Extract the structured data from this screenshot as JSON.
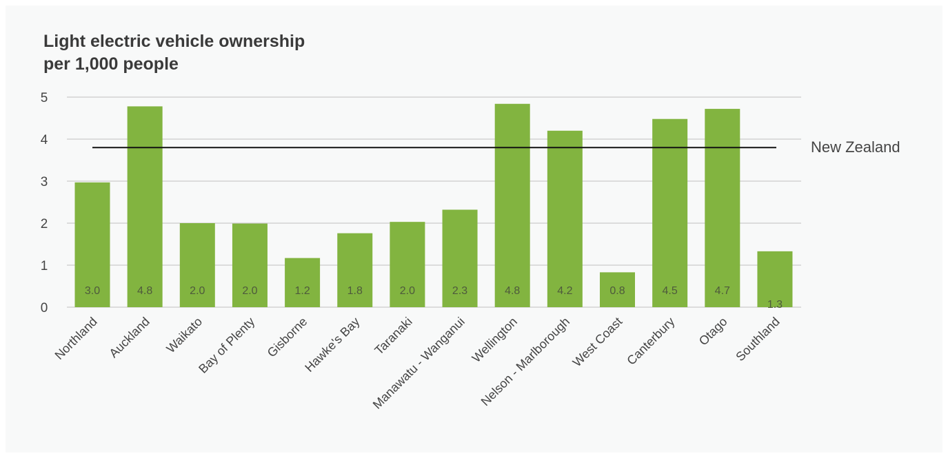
{
  "chart_data": {
    "type": "bar",
    "title_lines": [
      "Light electric vehicle ownership",
      "per 1,000 people"
    ],
    "xlabel": "",
    "ylabel": "",
    "ylim": [
      0,
      5
    ],
    "yticks": [
      "0",
      "1",
      "2",
      "3",
      "4",
      "5"
    ],
    "grid": true,
    "categories": [
      "Northland",
      "Auckland",
      "Waikato",
      "Bay of Plenty",
      "Gisborne",
      "Hawke's Bay",
      "Taranaki",
      "Manawatu - Wanganui",
      "Wellington",
      "Nelson - Marlborough",
      "West Coast",
      "Canterbury",
      "Otago",
      "Southland"
    ],
    "values": [
      2.97,
      4.78,
      2.0,
      1.99,
      1.17,
      1.76,
      2.03,
      2.32,
      4.84,
      4.2,
      0.83,
      4.48,
      4.72,
      1.33
    ],
    "value_labels": [
      "3.0",
      "4.8",
      "2.0",
      "2.0",
      "1.2",
      "1.8",
      "2.0",
      "2.3",
      "4.8",
      "4.2",
      "0.8",
      "4.5",
      "4.7",
      "1.3"
    ],
    "reference_line": {
      "label": "New Zealand",
      "value": 3.8
    },
    "colors": {
      "bar": "#82b440",
      "reference_line": "#111111",
      "grid": "#bfbfbf",
      "background": "#f8f9f9"
    }
  }
}
